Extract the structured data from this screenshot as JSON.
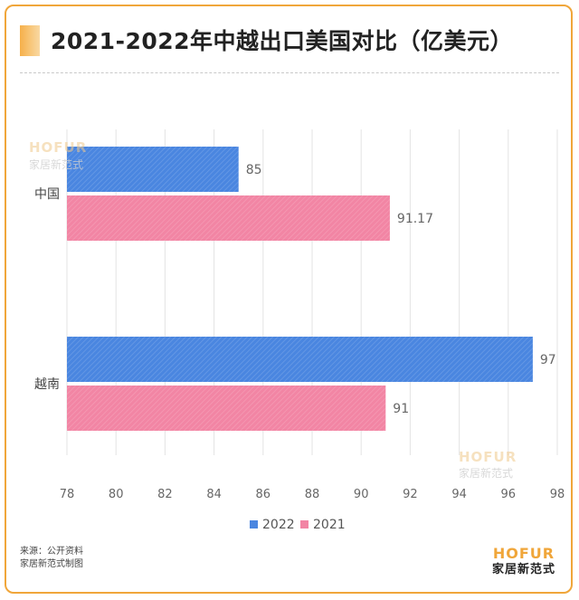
{
  "title": "2021-2022年中越出口美国对比（亿美元）",
  "source_line1": "来源：公开资料",
  "source_line2": "家居新范式制图",
  "brand": {
    "en": "HOFUR",
    "cn": "家居新范式"
  },
  "watermark": {
    "en": "HOFUR",
    "cn": "家居新范式"
  },
  "colors": {
    "s2022": "#4a86e0",
    "s2021": "#f285a4",
    "frame": "#f0a63a"
  },
  "chart_data": {
    "type": "bar",
    "orientation": "horizontal",
    "categories": [
      "中国",
      "越南"
    ],
    "series": [
      {
        "name": "2022",
        "values": [
          85,
          97
        ]
      },
      {
        "name": "2021",
        "values": [
          91.17,
          91
        ]
      }
    ],
    "value_labels": [
      [
        "85",
        "97"
      ],
      [
        "91.17",
        "91"
      ]
    ],
    "xlim": [
      78,
      98
    ],
    "xticks": [
      78,
      80,
      82,
      84,
      86,
      88,
      90,
      92,
      94,
      96,
      98
    ],
    "grid": true,
    "legend": "bottom"
  }
}
